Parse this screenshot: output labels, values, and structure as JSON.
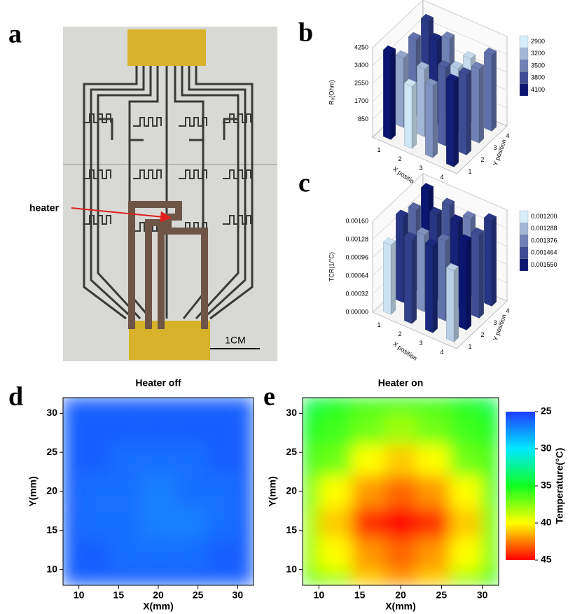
{
  "panel_labels": [
    "a",
    "b",
    "c",
    "d",
    "e"
  ],
  "photo": {
    "annotation": "heater",
    "scale_bar": "1CM"
  },
  "chart_data": [
    {
      "type": "bar3d",
      "xlabel": "X position",
      "ylabel": "Y position",
      "zlabel": "R₀(Ohm)",
      "x": [
        1,
        2,
        3,
        4
      ],
      "y": [
        1,
        2,
        3,
        4
      ],
      "values": [
        [
          4100,
          3300,
          3600,
          3900
        ],
        [
          2950,
          3200,
          4000,
          3500
        ],
        [
          3400,
          3700,
          3100,
          3000
        ],
        [
          4050,
          3800,
          3500,
          3600
        ]
      ],
      "zlim": [
        0,
        4250
      ],
      "zticks": [
        850,
        1700,
        2550,
        3400,
        4250
      ],
      "clim": [
        2900,
        4100
      ],
      "cticks": [
        2900,
        3200,
        3500,
        3800,
        4100
      ],
      "colors": [
        "#d6eefa",
        "#0a1670"
      ]
    },
    {
      "type": "bar3d",
      "xlabel": "X position",
      "ylabel": "Y position",
      "zlabel": "TCR(1/°C)",
      "x": [
        1,
        2,
        3,
        4
      ],
      "y": [
        1,
        2,
        3,
        4
      ],
      "values": [
        [
          0.00122,
          0.0015,
          0.00142,
          0.00155
        ],
        [
          0.00148,
          0.00135,
          0.0015,
          0.00145
        ],
        [
          0.00152,
          0.0014,
          0.00153,
          0.00138
        ],
        [
          0.00125,
          0.00155,
          0.00146,
          0.0015
        ]
      ],
      "zlim": [
        0,
        0.0016
      ],
      "zticks": [
        {
          "value": 0,
          "label": "0.00000"
        },
        {
          "value": 0.00032,
          "label": "0.00032"
        },
        {
          "value": 0.00064,
          "label": "0.00064"
        },
        {
          "value": 0.00096,
          "label": "0.00096"
        },
        {
          "value": 0.00128,
          "label": "0.00128"
        },
        {
          "value": 0.0016,
          "label": "0.00160"
        }
      ],
      "clim": [
        0.0012,
        0.00155
      ],
      "cticks": [
        {
          "value": 0.0012,
          "label": "0.001200"
        },
        {
          "value": 0.001288,
          "label": "0.001288"
        },
        {
          "value": 0.001376,
          "label": "0.001376"
        },
        {
          "value": 0.001464,
          "label": "0.001464"
        },
        {
          "value": 0.00155,
          "label": "0.001550"
        }
      ],
      "colors": [
        "#d6eefa",
        "#0a1670"
      ]
    },
    {
      "type": "heatmap",
      "title": "Heater off",
      "xlabel": "X(mm)",
      "ylabel": "Y(mm)",
      "x": [
        8,
        12,
        16,
        20,
        24,
        28,
        32
      ],
      "y": [
        8,
        12,
        16,
        20,
        24,
        28,
        32
      ],
      "z": [
        [
          26,
          26,
          26,
          26,
          26,
          26,
          26
        ],
        [
          26,
          26,
          26.5,
          26.5,
          26.5,
          26,
          26
        ],
        [
          26,
          26.5,
          26.5,
          27,
          27,
          26.5,
          26
        ],
        [
          26,
          26.5,
          26.5,
          27,
          26.5,
          26.5,
          26
        ],
        [
          26,
          26,
          26.5,
          26.5,
          26.5,
          26,
          26
        ],
        [
          26,
          26,
          26,
          26,
          26,
          26,
          26
        ],
        [
          26,
          26,
          26,
          26,
          26,
          26,
          26
        ]
      ],
      "xlim": [
        8,
        32
      ],
      "ylim": [
        8,
        32
      ],
      "xticks": [
        10,
        15,
        20,
        25,
        30
      ],
      "yticks": [
        10,
        15,
        20,
        25,
        30
      ],
      "zlim": [
        25,
        45
      ],
      "colors": [
        "#1e3cff",
        "#00e8ff",
        "#10ff20",
        "#ffff00",
        "#ff0000"
      ]
    },
    {
      "type": "heatmap",
      "title": "Heater on",
      "xlabel": "X(mm)",
      "ylabel": "Y(mm)",
      "x": [
        8,
        12,
        16,
        20,
        24,
        28,
        32
      ],
      "y": [
        8,
        12,
        16,
        20,
        24,
        28,
        32
      ],
      "z": [
        [
          37,
          38,
          41,
          42,
          41,
          38,
          36
        ],
        [
          38,
          40,
          42,
          43,
          42,
          40,
          37
        ],
        [
          38,
          41,
          44,
          45,
          44,
          41,
          37
        ],
        [
          37,
          40,
          42,
          43,
          42,
          40,
          36
        ],
        [
          36,
          37,
          40,
          41,
          40,
          37,
          36
        ],
        [
          35,
          36,
          37,
          38,
          37,
          36,
          35
        ],
        [
          34,
          35,
          36,
          36,
          36,
          35,
          34
        ]
      ],
      "xlim": [
        8,
        32
      ],
      "ylim": [
        8,
        32
      ],
      "xticks": [
        10,
        15,
        20,
        25,
        30
      ],
      "yticks": [
        10,
        15,
        20,
        25,
        30
      ],
      "zlim": [
        25,
        45
      ],
      "colors": [
        "#1e3cff",
        "#00e8ff",
        "#10ff20",
        "#ffff00",
        "#ff0000"
      ],
      "colorbar": {
        "label": "Temperature(°C)",
        "ticks": [
          25,
          30,
          35,
          40,
          45
        ]
      }
    }
  ]
}
